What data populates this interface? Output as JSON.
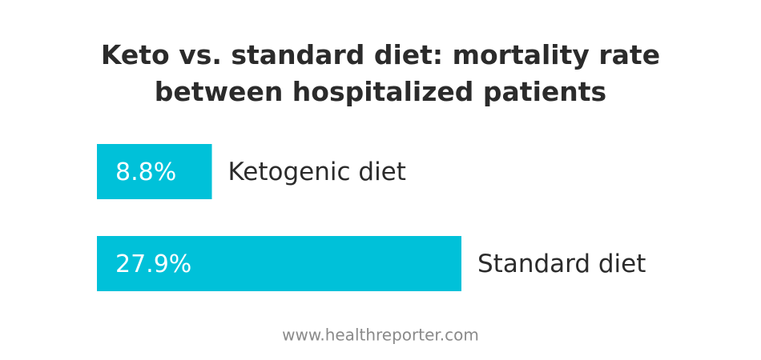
{
  "chart_data": {
    "type": "bar",
    "orientation": "horizontal",
    "title": "Keto vs. standard diet: mortality rate between hospitalized patients",
    "categories": [
      "Ketogenic diet",
      "Standard diet"
    ],
    "values": [
      8.8,
      27.9
    ],
    "value_labels": [
      "8.8%",
      "27.9%"
    ],
    "color": "#00c1d9",
    "source": "www.healthreporter.com"
  }
}
